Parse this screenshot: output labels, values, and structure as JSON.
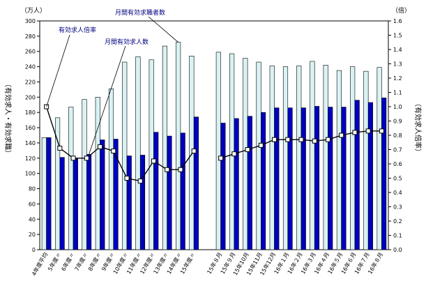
{
  "chart_data": {
    "type": "bar",
    "categories": [
      "4年度平均",
      "5年度〃",
      "6年度〃",
      "7年度〃",
      "8年度〃",
      "9年度〃",
      "10年度〃",
      "11年度〃",
      "12年度〃",
      "13年度〃",
      "14年度〃",
      "15年度〃",
      "",
      "15年８月",
      "15年９月",
      "15年10月",
      "15年11月",
      "15年12月",
      "16年１月",
      "16年２月",
      "16年３月",
      "16年４月",
      "16年５月",
      "16年６月",
      "16年７月",
      "16年８月"
    ],
    "series": [
      {
        "name": "月間有効求職者数",
        "axis": "left",
        "values": [
          147,
          173,
          187,
          197,
          200,
          211,
          246,
          253,
          249,
          267,
          272,
          254,
          null,
          259,
          257,
          251,
          246,
          241,
          240,
          241,
          247,
          242,
          235,
          240,
          234,
          239
        ],
        "color": "#d9f2f4"
      },
      {
        "name": "月間有効求人数",
        "axis": "left",
        "values": [
          147,
          121,
          119,
          125,
          144,
          145,
          123,
          124,
          154,
          149,
          153,
          174,
          null,
          166,
          172,
          175,
          180,
          186,
          186,
          186,
          188,
          187,
          187,
          196,
          193,
          199
        ],
        "color": "#0000c0"
      },
      {
        "name": "有効求人倍率",
        "axis": "right",
        "type": "line",
        "values": [
          1.0,
          0.71,
          0.64,
          0.64,
          0.72,
          0.69,
          0.5,
          0.48,
          0.62,
          0.56,
          0.56,
          0.69,
          null,
          0.64,
          0.67,
          0.7,
          0.73,
          0.77,
          0.77,
          0.77,
          0.76,
          0.77,
          0.8,
          0.82,
          0.83,
          0.83
        ],
        "color": "#000000"
      }
    ],
    "left_axis": {
      "unit": "（万人）",
      "min": 0,
      "max": 300,
      "step": 20,
      "label": "（有効求人・有効求職）"
    },
    "right_axis": {
      "unit": "（倍）",
      "min": 0,
      "max": 1.6,
      "step": 0.1,
      "label": "（有効求人倍率）"
    },
    "annotations": [
      {
        "text": "月間有効求職者数",
        "series": 0
      },
      {
        "text": "有効求人倍率",
        "series": 2
      },
      {
        "text": "月間有効求人数",
        "series": 1
      }
    ]
  }
}
